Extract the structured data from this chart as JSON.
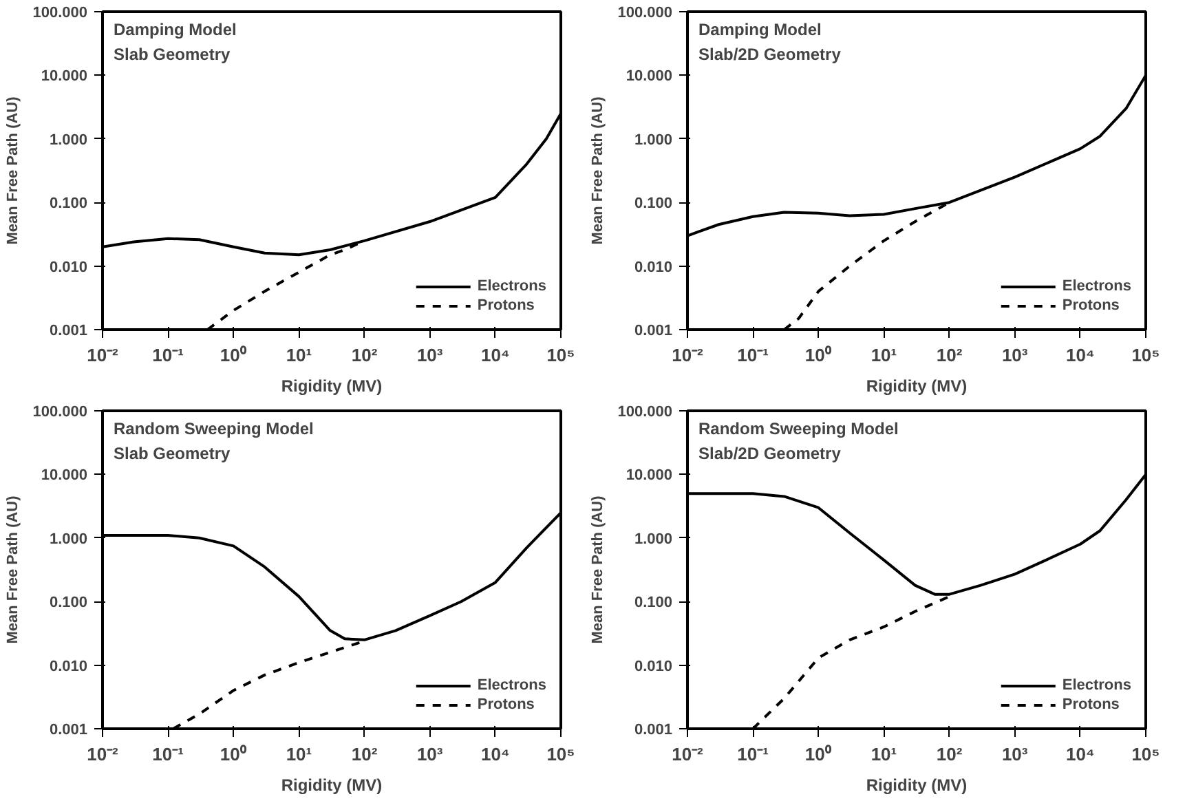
{
  "chart_data": [
    {
      "type": "line",
      "title": "Damping Model",
      "subtitle": "Slab Geometry",
      "xlabel": "Rigidity (MV)",
      "ylabel": "Mean Free Path (AU)",
      "log": "xy",
      "grid": false,
      "legend": "bottom right",
      "xlim": [
        0.01,
        100000
      ],
      "ylim": [
        0.001,
        100
      ],
      "xticks": [
        {
          "value": 0.01,
          "label": "10⁻²"
        },
        {
          "value": 0.1,
          "label": "10⁻¹"
        },
        {
          "value": 1,
          "label": "10⁰"
        },
        {
          "value": 10,
          "label": "10¹"
        },
        {
          "value": 100,
          "label": "10²"
        },
        {
          "value": 1000,
          "label": "10³"
        },
        {
          "value": 10000,
          "label": "10⁴"
        },
        {
          "value": 100000,
          "label": "10⁵"
        }
      ],
      "yticks": [
        {
          "value": 0.001,
          "label": "0.001"
        },
        {
          "value": 0.01,
          "label": "0.010"
        },
        {
          "value": 0.1,
          "label": "0.100"
        },
        {
          "value": 1,
          "label": "1.000"
        },
        {
          "value": 10,
          "label": "10.000"
        },
        {
          "value": 100,
          "label": "100.000"
        }
      ],
      "series": [
        {
          "name": "Electrons",
          "color": "#000000",
          "line_style": "solid",
          "x": [
            0.01,
            0.03,
            0.1,
            0.3,
            1,
            3,
            10,
            30,
            100,
            1000,
            10000,
            30000,
            60000,
            100000
          ],
          "values": [
            0.02,
            0.024,
            0.027,
            0.026,
            0.02,
            0.016,
            0.015,
            0.018,
            0.025,
            0.05,
            0.12,
            0.4,
            1.0,
            2.5
          ]
        },
        {
          "name": "Protons",
          "color": "#000000",
          "line_style": "dashed",
          "x": [
            0.4,
            1,
            3,
            10,
            30,
            50,
            100
          ],
          "values": [
            0.001,
            0.002,
            0.004,
            0.008,
            0.015,
            0.018,
            0.025
          ]
        }
      ]
    },
    {
      "type": "line",
      "title": "Damping Model",
      "subtitle": "Slab/2D Geometry",
      "xlabel": "Rigidity (MV)",
      "ylabel": "Mean Free Path (AU)",
      "log": "xy",
      "grid": false,
      "legend": "bottom right",
      "xlim": [
        0.01,
        100000
      ],
      "ylim": [
        0.001,
        100
      ],
      "xticks": [
        {
          "value": 0.01,
          "label": "10⁻²"
        },
        {
          "value": 0.1,
          "label": "10⁻¹"
        },
        {
          "value": 1,
          "label": "10⁰"
        },
        {
          "value": 10,
          "label": "10¹"
        },
        {
          "value": 100,
          "label": "10²"
        },
        {
          "value": 1000,
          "label": "10³"
        },
        {
          "value": 10000,
          "label": "10⁴"
        },
        {
          "value": 100000,
          "label": "10⁵"
        }
      ],
      "yticks": [
        {
          "value": 0.001,
          "label": "0.001"
        },
        {
          "value": 0.01,
          "label": "0.010"
        },
        {
          "value": 0.1,
          "label": "0.100"
        },
        {
          "value": 1,
          "label": "1.000"
        },
        {
          "value": 10,
          "label": "10.000"
        },
        {
          "value": 100,
          "label": "100.000"
        }
      ],
      "series": [
        {
          "name": "Electrons",
          "color": "#000000",
          "line_style": "solid",
          "x": [
            0.01,
            0.03,
            0.1,
            0.3,
            1,
            3,
            10,
            30,
            100,
            1000,
            10000,
            20000,
            50000,
            100000
          ],
          "values": [
            0.03,
            0.045,
            0.06,
            0.07,
            0.068,
            0.062,
            0.065,
            0.08,
            0.1,
            0.25,
            0.7,
            1.1,
            3,
            10
          ]
        },
        {
          "name": "Protons",
          "color": "#000000",
          "line_style": "dashed",
          "x": [
            0.3,
            0.5,
            1,
            3,
            10,
            30,
            100
          ],
          "values": [
            0.001,
            0.0015,
            0.004,
            0.01,
            0.025,
            0.05,
            0.1
          ]
        }
      ]
    },
    {
      "type": "line",
      "title": "Random Sweeping Model",
      "subtitle": "Slab Geometry",
      "xlabel": "Rigidity (MV)",
      "ylabel": "Mean Free Path (AU)",
      "log": "xy",
      "grid": false,
      "legend": "bottom right",
      "xlim": [
        0.01,
        100000
      ],
      "ylim": [
        0.001,
        100
      ],
      "xticks": [
        {
          "value": 0.01,
          "label": "10⁻²"
        },
        {
          "value": 0.1,
          "label": "10⁻¹"
        },
        {
          "value": 1,
          "label": "10⁰"
        },
        {
          "value": 10,
          "label": "10¹"
        },
        {
          "value": 100,
          "label": "10²"
        },
        {
          "value": 1000,
          "label": "10³"
        },
        {
          "value": 10000,
          "label": "10⁴"
        },
        {
          "value": 100000,
          "label": "10⁵"
        }
      ],
      "yticks": [
        {
          "value": 0.001,
          "label": "0.001"
        },
        {
          "value": 0.01,
          "label": "0.010"
        },
        {
          "value": 0.1,
          "label": "0.100"
        },
        {
          "value": 1,
          "label": "1.000"
        },
        {
          "value": 10,
          "label": "10.000"
        },
        {
          "value": 100,
          "label": "100.000"
        }
      ],
      "series": [
        {
          "name": "Electrons",
          "color": "#000000",
          "line_style": "solid",
          "x": [
            0.01,
            0.1,
            0.3,
            1,
            3,
            10,
            30,
            50,
            100,
            300,
            1000,
            3000,
            10000,
            30000,
            100000
          ],
          "values": [
            1.1,
            1.1,
            1.0,
            0.75,
            0.35,
            0.12,
            0.035,
            0.026,
            0.025,
            0.035,
            0.06,
            0.1,
            0.2,
            0.7,
            2.5
          ]
        },
        {
          "name": "Protons",
          "color": "#000000",
          "line_style": "dashed",
          "x": [
            0.12,
            0.3,
            1,
            3,
            10,
            30,
            100
          ],
          "values": [
            0.001,
            0.0017,
            0.004,
            0.007,
            0.011,
            0.016,
            0.024
          ]
        }
      ]
    },
    {
      "type": "line",
      "title": "Random Sweeping Model",
      "subtitle": "Slab/2D Geometry",
      "xlabel": "Rigidity (MV)",
      "ylabel": "Mean Free Path (AU)",
      "log": "xy",
      "grid": false,
      "legend": "bottom right",
      "xlim": [
        0.01,
        100000
      ],
      "ylim": [
        0.001,
        100
      ],
      "xticks": [
        {
          "value": 0.01,
          "label": "10⁻²"
        },
        {
          "value": 0.1,
          "label": "10⁻¹"
        },
        {
          "value": 1,
          "label": "10⁰"
        },
        {
          "value": 10,
          "label": "10¹"
        },
        {
          "value": 100,
          "label": "10²"
        },
        {
          "value": 1000,
          "label": "10³"
        },
        {
          "value": 10000,
          "label": "10⁴"
        },
        {
          "value": 100000,
          "label": "10⁵"
        }
      ],
      "yticks": [
        {
          "value": 0.001,
          "label": "0.001"
        },
        {
          "value": 0.01,
          "label": "0.010"
        },
        {
          "value": 0.1,
          "label": "0.100"
        },
        {
          "value": 1,
          "label": "1.000"
        },
        {
          "value": 10,
          "label": "10.000"
        },
        {
          "value": 100,
          "label": "100.000"
        }
      ],
      "series": [
        {
          "name": "Electrons",
          "color": "#000000",
          "line_style": "solid",
          "x": [
            0.01,
            0.1,
            0.3,
            1,
            3,
            10,
            30,
            60,
            100,
            300,
            1000,
            3000,
            10000,
            20000,
            50000,
            100000
          ],
          "values": [
            5,
            5,
            4.5,
            3,
            1.2,
            0.45,
            0.18,
            0.13,
            0.13,
            0.18,
            0.27,
            0.45,
            0.8,
            1.3,
            4,
            10
          ]
        },
        {
          "name": "Protons",
          "color": "#000000",
          "line_style": "dashed",
          "x": [
            0.1,
            0.3,
            1,
            3,
            10,
            30,
            100
          ],
          "values": [
            0.001,
            0.003,
            0.013,
            0.025,
            0.04,
            0.07,
            0.12
          ]
        }
      ]
    }
  ]
}
